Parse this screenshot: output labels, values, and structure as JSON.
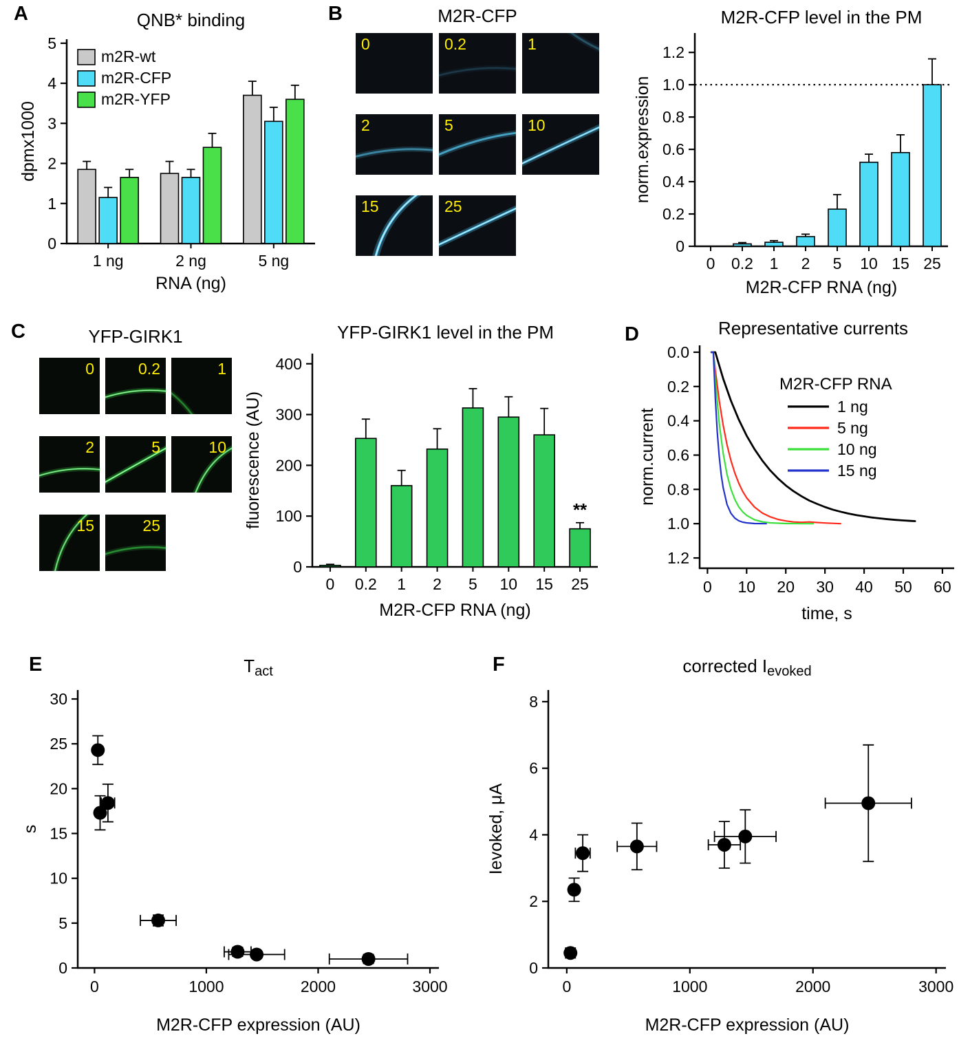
{
  "labels": {
    "A": "A",
    "B": "B",
    "C": "C",
    "D": "D",
    "E": "E",
    "F": "F"
  },
  "image_grids": {
    "m2r_cfp": {
      "title": "M2R-CFP",
      "label_color": "#ffee00",
      "arc_color": "#58cdf8",
      "arc_core_color": "#d8f4ff",
      "bg": "#0b0e13",
      "label_pos": "tl",
      "tiles": [
        {
          "label": "0",
          "arc": "none",
          "intensity": 0
        },
        {
          "label": "0.2",
          "arc": "low",
          "intensity": 0.18
        },
        {
          "label": "1",
          "arc": "cornertr",
          "intensity": 0.3
        },
        {
          "label": "2",
          "arc": "low",
          "intensity": 0.55
        },
        {
          "label": "5",
          "arc": "mid",
          "intensity": 0.7
        },
        {
          "label": "10",
          "arc": "diag",
          "intensity": 0.9
        },
        {
          "label": "15",
          "arc": "steep",
          "intensity": 1
        },
        {
          "label": "25",
          "arc": "diag",
          "intensity": 1
        }
      ]
    },
    "yfp_girk1": {
      "title": "YFP-GIRK1",
      "label_color": "#ffee00",
      "arc_color": "#3bd84b",
      "arc_core_color": "#d2ffd8",
      "bg": "#070b07",
      "label_pos": "tr",
      "tiles": [
        {
          "label": "0",
          "arc": "none",
          "intensity": 0
        },
        {
          "label": "0.2",
          "arc": "low",
          "intensity": 0.85
        },
        {
          "label": "1",
          "arc": "cornerbl",
          "intensity": 0.5
        },
        {
          "label": "2",
          "arc": "low",
          "intensity": 0.8
        },
        {
          "label": "5",
          "arc": "diag",
          "intensity": 1
        },
        {
          "label": "10",
          "arc": "steep2",
          "intensity": 0.8
        },
        {
          "label": "15",
          "arc": "steep",
          "intensity": 0.75
        },
        {
          "label": "25",
          "arc": "low",
          "intensity": 0.55
        }
      ]
    }
  },
  "chart_data": [
    {
      "id": "qnb",
      "type": "bar",
      "title": "QNB* binding",
      "xlabel": "RNA (ng)",
      "ylabel": "dpmx1000",
      "ylim": [
        0,
        5.1
      ],
      "yticks": [
        0,
        1,
        2,
        3,
        4,
        5
      ],
      "categories": [
        "1 ng",
        "2 ng",
        "5 ng"
      ],
      "series": [
        {
          "name": "m2R-wt",
          "color": "#c9c9c9",
          "values": [
            1.85,
            1.75,
            3.7
          ],
          "errors": [
            0.2,
            0.3,
            0.35
          ]
        },
        {
          "name": "m2R-CFP",
          "color": "#4fdcf7",
          "values": [
            1.15,
            1.65,
            3.05
          ],
          "errors": [
            0.25,
            0.2,
            0.35
          ]
        },
        {
          "name": "m2R-YFP",
          "color": "#4ae04a",
          "values": [
            1.65,
            2.4,
            3.6
          ],
          "errors": [
            0.2,
            0.35,
            0.35
          ]
        }
      ],
      "legend_position": "top-left",
      "grid": false
    },
    {
      "id": "m2r_pm",
      "type": "bar",
      "title": "M2R-CFP level in the PM",
      "xlabel": "M2R-CFP RNA (ng)",
      "ylabel": "norm.expression",
      "ylim": [
        0,
        1.32
      ],
      "yticks": [
        "0",
        "0.2",
        "0.4",
        "0.6",
        "0.8",
        "1.0",
        "1.2"
      ],
      "categories": [
        "0",
        "0.2",
        "1",
        "2",
        "5",
        "10",
        "15",
        "25"
      ],
      "series": [
        {
          "name": "M2R-CFP",
          "color": "#4fdcf7",
          "values": [
            0,
            0.015,
            0.025,
            0.06,
            0.23,
            0.52,
            0.58,
            1.0
          ],
          "errors": [
            0,
            0.008,
            0.01,
            0.015,
            0.09,
            0.05,
            0.11,
            0.16
          ]
        }
      ],
      "refline": {
        "y": 1.0,
        "style": "dotted"
      },
      "grid": false
    },
    {
      "id": "girk_pm",
      "type": "bar",
      "title": "YFP-GIRK1 level in the PM",
      "xlabel": "M2R-CFP RNA (ng)",
      "ylabel": "fluorescence (AU)",
      "ylim": [
        0,
        420
      ],
      "yticks": [
        0,
        100,
        200,
        300,
        400
      ],
      "categories": [
        "0",
        "0.2",
        "1",
        "2",
        "5",
        "10",
        "15",
        "25"
      ],
      "series": [
        {
          "name": "YFP-GIRK1",
          "color": "#2fca5a",
          "values": [
            3,
            253,
            160,
            232,
            313,
            295,
            260,
            75
          ],
          "errors": [
            2,
            38,
            30,
            40,
            38,
            40,
            52,
            12
          ]
        }
      ],
      "annotations": [
        {
          "category": "25",
          "text": "**"
        }
      ],
      "grid": false
    },
    {
      "id": "currents",
      "type": "line",
      "title": "Representative currents",
      "xlabel": "time, s",
      "ylabel": "norm.current",
      "ylim": [
        -0.04,
        1.26
      ],
      "y_inverted": true,
      "yticks": [
        "0.0",
        "0.2",
        "0.4",
        "0.6",
        "0.8",
        "1.0",
        "1.2"
      ],
      "xlim": [
        -2,
        63
      ],
      "xticks": [
        0,
        10,
        20,
        30,
        40,
        50,
        60
      ],
      "legend_title": "M2R-CFP RNA",
      "legend_position": "top-right",
      "series": [
        {
          "name": "1 ng",
          "color": "#000000",
          "points": [
            [
              1,
              0
            ],
            [
              2,
              0
            ],
            [
              4,
              0.154
            ],
            [
              6,
              0.283
            ],
            [
              8,
              0.393
            ],
            [
              10,
              0.487
            ],
            [
              12,
              0.565
            ],
            [
              14,
              0.632
            ],
            [
              16,
              0.689
            ],
            [
              18,
              0.736
            ],
            [
              20,
              0.777
            ],
            [
              22,
              0.811
            ],
            [
              24,
              0.84
            ],
            [
              26,
              0.865
            ],
            [
              28,
              0.885
            ],
            [
              30,
              0.903
            ],
            [
              32,
              0.918
            ],
            [
              34,
              0.93
            ],
            [
              36,
              0.941
            ],
            [
              38,
              0.95
            ],
            [
              40,
              0.957
            ],
            [
              42,
              0.964
            ],
            [
              44,
              0.969
            ],
            [
              46,
              0.974
            ],
            [
              48,
              0.978
            ],
            [
              50,
              0.981
            ],
            [
              52,
              0.984
            ],
            [
              53,
              0.985
            ]
          ]
        },
        {
          "name": "5 ng",
          "color": "#ff2a1a",
          "points": [
            [
              1,
              0
            ],
            [
              1.5,
              0
            ],
            [
              2,
              0.105
            ],
            [
              3,
              0.283
            ],
            [
              4,
              0.426
            ],
            [
              5,
              0.54
            ],
            [
              6,
              0.632
            ],
            [
              7,
              0.705
            ],
            [
              8,
              0.764
            ],
            [
              9,
              0.812
            ],
            [
              10,
              0.849
            ],
            [
              12,
              0.903
            ],
            [
              14,
              0.938
            ],
            [
              16,
              0.96
            ],
            [
              18,
              0.975
            ],
            [
              20,
              0.984
            ],
            [
              22,
              0.99
            ],
            [
              24,
              0.992
            ],
            [
              26,
              0.99
            ],
            [
              28,
              0.993
            ],
            [
              30,
              0.996
            ],
            [
              32,
              0.998
            ],
            [
              34,
              1.0
            ]
          ]
        },
        {
          "name": "10 ng",
          "color": "#3ce03c",
          "points": [
            [
              1,
              0
            ],
            [
              1.5,
              0
            ],
            [
              2,
              0.164
            ],
            [
              3,
              0.415
            ],
            [
              4,
              0.59
            ],
            [
              5,
              0.713
            ],
            [
              6,
              0.799
            ],
            [
              7,
              0.859
            ],
            [
              8,
              0.902
            ],
            [
              9,
              0.931
            ],
            [
              10,
              0.952
            ],
            [
              12,
              0.977
            ],
            [
              14,
              0.989
            ],
            [
              16,
              0.995
            ],
            [
              18,
              0.997
            ],
            [
              20,
              0.999
            ],
            [
              22,
              0.999
            ],
            [
              24,
              1.0
            ],
            [
              27,
              1.0
            ]
          ]
        },
        {
          "name": "15 ng",
          "color": "#2233cc",
          "points": [
            [
              1,
              0
            ],
            [
              1.5,
              0
            ],
            [
              2,
              0.268
            ],
            [
              2.5,
              0.465
            ],
            [
              3,
              0.609
            ],
            [
              3.5,
              0.714
            ],
            [
              4,
              0.79
            ],
            [
              5,
              0.888
            ],
            [
              6,
              0.94
            ],
            [
              7,
              0.968
            ],
            [
              8,
              0.983
            ],
            [
              9,
              0.991
            ],
            [
              10,
              0.995
            ],
            [
              12,
              0.999
            ],
            [
              15,
              1.0
            ]
          ]
        }
      ],
      "grid": false
    },
    {
      "id": "tact",
      "type": "scatter",
      "title": {
        "main": "T",
        "sub": "act"
      },
      "xlabel": "M2R-CFP expression (AU)",
      "ylabel": "s",
      "ylim": [
        0,
        31
      ],
      "yticks": [
        0,
        5,
        10,
        15,
        20,
        25,
        30
      ],
      "xlim": [
        -150,
        3080
      ],
      "xticks": [
        0,
        1000,
        2000,
        3000
      ],
      "points": [
        {
          "x": 30,
          "y": 24.3,
          "xerr": 20,
          "yerr": 1.6
        },
        {
          "x": 50,
          "y": 17.3,
          "xerr": 30,
          "yerr": 1.9
        },
        {
          "x": 120,
          "y": 18.4,
          "xerr": 60,
          "yerr": 2.1
        },
        {
          "x": 570,
          "y": 5.3,
          "xerr": 160,
          "yerr": 0.6
        },
        {
          "x": 1280,
          "y": 1.8,
          "xerr": 120,
          "yerr": 0.5
        },
        {
          "x": 1450,
          "y": 1.5,
          "xerr": 250,
          "yerr": 0.4
        },
        {
          "x": 2450,
          "y": 1.0,
          "xerr": 350,
          "yerr": 0.5
        }
      ],
      "grid": false
    },
    {
      "id": "ievoked",
      "type": "scatter",
      "title": {
        "main": "corrected I",
        "sub": "evoked"
      },
      "xlabel": "M2R-CFP expression (AU)",
      "ylabel": "Ievoked, μA",
      "ylim": [
        0,
        8.35
      ],
      "yticks": [
        0,
        2,
        4,
        6,
        8
      ],
      "xlim": [
        -150,
        3080
      ],
      "xticks": [
        0,
        1000,
        2000,
        3000
      ],
      "points": [
        {
          "x": 30,
          "y": 0.45,
          "xerr": 15,
          "yerr": 0.15
        },
        {
          "x": 60,
          "y": 2.35,
          "xerr": 30,
          "yerr": 0.35
        },
        {
          "x": 130,
          "y": 3.45,
          "xerr": 60,
          "yerr": 0.55
        },
        {
          "x": 570,
          "y": 3.65,
          "xerr": 160,
          "yerr": 0.7
        },
        {
          "x": 1280,
          "y": 3.7,
          "xerr": 130,
          "yerr": 0.7
        },
        {
          "x": 1450,
          "y": 3.95,
          "xerr": 250,
          "yerr": 0.8
        },
        {
          "x": 2450,
          "y": 4.95,
          "xerr": 350,
          "yerr": 1.75
        }
      ],
      "grid": false
    }
  ]
}
